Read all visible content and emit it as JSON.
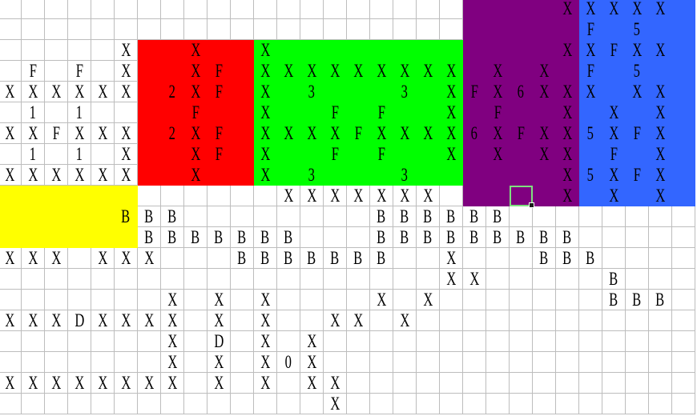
{
  "grid": {
    "num_rows": 20,
    "num_cols": 30,
    "selected_cell": {
      "row": 9,
      "col": 22
    },
    "selection_color": "#7fe07f",
    "gridline_color": "#bdbdbd",
    "fills": [
      {
        "name": "red-region",
        "color": "#ff0000",
        "rows": [
          2,
          8
        ],
        "cols": [
          6,
          10
        ]
      },
      {
        "name": "green-region",
        "color": "#00ff00",
        "rows": [
          2,
          8
        ],
        "cols": [
          11,
          19
        ]
      },
      {
        "name": "purple-region",
        "color": "#800080",
        "rows": [
          0,
          9
        ],
        "cols": [
          20,
          24
        ]
      },
      {
        "name": "blue-region",
        "color": "#3366ff",
        "rows": [
          0,
          9
        ],
        "cols": [
          25,
          29
        ]
      },
      {
        "name": "yellow-region",
        "color": "#ffff00",
        "rows": [
          9,
          11
        ],
        "cols": [
          0,
          5
        ]
      }
    ],
    "rows": [
      {
        "24": "X",
        "25": "X",
        "26": "X",
        "27": "X",
        "28": "X"
      },
      {
        "25": "F",
        "27": "5"
      },
      {
        "5": "X",
        "8": "X",
        "11": "X",
        "24": "X",
        "25": "X",
        "26": "F",
        "27": "X",
        "28": "X"
      },
      {
        "1": "F",
        "3": "F",
        "5": "X",
        "8": "X",
        "9": "F",
        "11": "X",
        "12": "X",
        "13": "X",
        "14": "X",
        "15": "X",
        "16": "X",
        "17": "X",
        "18": "X",
        "19": "X",
        "21": "X",
        "23": "X",
        "25": "F",
        "27": "5"
      },
      {
        "0": "X",
        "1": "X",
        "2": "X",
        "3": "X",
        "4": "X",
        "5": "X",
        "7": "2",
        "8": "X",
        "9": "F",
        "11": "X",
        "13": "3",
        "17": "3",
        "19": "X",
        "20": "F",
        "21": "X",
        "22": "6",
        "23": "X",
        "24": "X",
        "25": "X",
        "27": "X",
        "28": "X"
      },
      {
        "1": "1",
        "3": "1",
        "8": "F",
        "11": "X",
        "14": "F",
        "16": "F",
        "19": "X",
        "21": "F",
        "24": "X",
        "26": "X",
        "28": "X"
      },
      {
        "0": "X",
        "1": "X",
        "2": "F",
        "3": "X",
        "4": "X",
        "5": "X",
        "7": "2",
        "8": "X",
        "9": "F",
        "11": "X",
        "12": "X",
        "13": "X",
        "14": "X",
        "15": "F",
        "16": "X",
        "17": "X",
        "18": "X",
        "19": "X",
        "20": "6",
        "21": "X",
        "22": "F",
        "23": "X",
        "24": "X",
        "25": "5",
        "26": "X",
        "27": "F",
        "28": "X"
      },
      {
        "1": "1",
        "3": "1",
        "5": "X",
        "8": "X",
        "9": "F",
        "11": "X",
        "14": "F",
        "16": "F",
        "19": "X",
        "21": "X",
        "23": "X",
        "24": "X",
        "26": "F",
        "28": "X"
      },
      {
        "0": "X",
        "1": "X",
        "2": "X",
        "3": "X",
        "4": "X",
        "5": "X",
        "8": "X",
        "11": "X",
        "13": "3",
        "17": "3",
        "24": "X",
        "25": "5",
        "26": "X",
        "27": "F",
        "28": "X"
      },
      {
        "12": "X",
        "13": "X",
        "14": "X",
        "15": "X",
        "16": "X",
        "17": "X",
        "18": "X",
        "24": "X",
        "26": "X",
        "28": "X"
      },
      {
        "5": "B",
        "6": "B",
        "7": "B",
        "16": "B",
        "17": "B",
        "18": "B",
        "19": "B",
        "20": "B",
        "21": "B"
      },
      {
        "6": "B",
        "7": "B",
        "8": "B",
        "9": "B",
        "10": "B",
        "11": "B",
        "12": "B",
        "16": "B",
        "17": "B",
        "18": "B",
        "19": "B",
        "20": "B",
        "21": "B",
        "22": "B",
        "23": "B",
        "24": "B"
      },
      {
        "0": "X",
        "1": "X",
        "2": "X",
        "4": "X",
        "5": "X",
        "6": "X",
        "10": "B",
        "11": "B",
        "12": "B",
        "13": "B",
        "14": "B",
        "15": "B",
        "16": "B",
        "19": "X",
        "23": "B",
        "24": "B",
        "25": "B"
      },
      {
        "19": "X",
        "20": "X",
        "26": "B"
      },
      {
        "7": "X",
        "9": "X",
        "11": "X",
        "16": "X",
        "18": "X",
        "26": "B",
        "27": "B",
        "28": "B"
      },
      {
        "0": "X",
        "1": "X",
        "2": "X",
        "3": "D",
        "4": "X",
        "5": "X",
        "6": "X",
        "7": "X",
        "9": "X",
        "11": "X",
        "14": "X",
        "15": "X",
        "17": "X"
      },
      {
        "7": "X",
        "9": "D",
        "11": "X",
        "13": "X"
      },
      {
        "7": "X",
        "9": "X",
        "11": "X",
        "12": "0",
        "13": "X"
      },
      {
        "0": "X",
        "1": "X",
        "2": "X",
        "3": "X",
        "4": "X",
        "5": "X",
        "6": "X",
        "7": "X",
        "9": "X",
        "11": "X",
        "13": "X",
        "14": "X"
      },
      {
        "14": "X"
      }
    ]
  }
}
